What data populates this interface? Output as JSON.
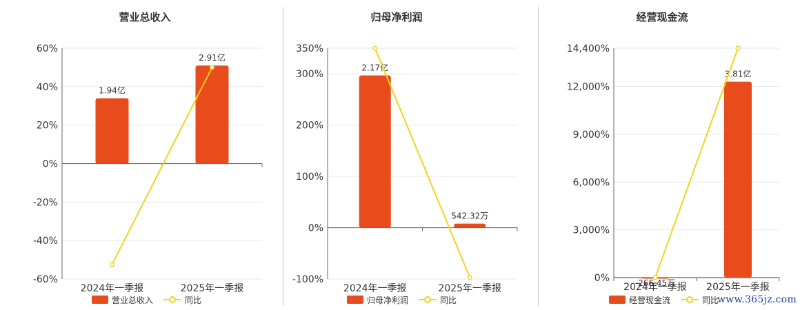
{
  "legend": {
    "line_label": "同比"
  },
  "colors": {
    "bar": "#e84c1c",
    "line": "#f2d31b",
    "axis": "#666666",
    "grid": "#e6e6e6",
    "text": "#333333"
  },
  "chart_data": [
    {
      "type": "bar",
      "title": "营业总收入",
      "categories": [
        "2024年一季报",
        "2025年一季报"
      ],
      "series": [
        {
          "name": "营业总收入",
          "type": "bar",
          "values": [
            34,
            51
          ],
          "labels": [
            "1.94亿",
            "2.91亿"
          ]
        },
        {
          "name": "同比",
          "type": "line",
          "values": [
            -52.5,
            50
          ]
        }
      ],
      "ylim": [
        -60,
        60
      ],
      "yticks": [
        "60%",
        "40%",
        "20%",
        "0%",
        "-20%",
        "-40%",
        "-60%"
      ],
      "grid": true,
      "legend_position": "bottom"
    },
    {
      "type": "bar",
      "title": "归母净利润",
      "categories": [
        "2024年一季报",
        "2025年一季报"
      ],
      "series": [
        {
          "name": "归母净利润",
          "type": "bar",
          "values": [
            297,
            8
          ],
          "labels": [
            "2.17亿",
            "542.32万"
          ]
        },
        {
          "name": "同比",
          "type": "line",
          "values": [
            350,
            -97
          ]
        }
      ],
      "ylim": [
        -100,
        350
      ],
      "yticks": [
        "350%",
        "300%",
        "200%",
        "100%",
        "0%",
        "-100%"
      ],
      "grid": true,
      "legend_position": "bottom"
    },
    {
      "type": "bar",
      "title": "经营现金流",
      "categories": [
        "2024年一季报",
        "2025年一季报"
      ],
      "series": [
        {
          "name": "经营现金流",
          "type": "bar",
          "values": [
            -10,
            12300
          ],
          "labels": [
            "-266.45万",
            "3.81亿"
          ]
        },
        {
          "name": "同比",
          "type": "line",
          "values": [
            0,
            14400
          ]
        }
      ],
      "ylim": [
        0,
        14400
      ],
      "yticks": [
        "14,400%",
        "12,000%",
        "9,000%",
        "6,000%",
        "3,000%",
        "0%"
      ],
      "grid": true,
      "legend_position": "bottom"
    }
  ],
  "watermark": "www.365jz.com"
}
